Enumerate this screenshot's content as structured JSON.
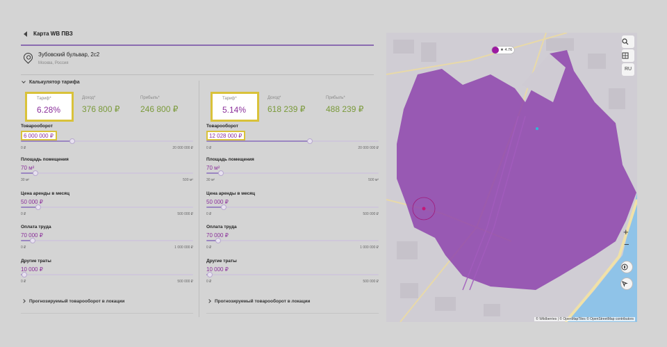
{
  "header": {
    "title": "Карта WB ПВЗ"
  },
  "address": {
    "street": "Зубовский бульвар, 2с2",
    "city": "Москва, Россия"
  },
  "calculator": {
    "toggle_label": "Калькулятор тарифа"
  },
  "columns": [
    {
      "metrics": {
        "tariff_label": "Тариф*",
        "tariff_value": "6.28%",
        "income_label": "Доход*",
        "income_value": "376 800 ₽",
        "profit_label": "Прибыль*",
        "profit_value": "246 800 ₽"
      },
      "params": [
        {
          "label": "Товарооборот",
          "value": "6 000 000 ₽",
          "min": "0 ₽",
          "max": "20 000 000 ₽",
          "fraction": 0.3
        },
        {
          "label": "Площадь помещения",
          "value": "70 м²",
          "min": "30 м²",
          "max": "500 м²",
          "fraction": 0.085
        },
        {
          "label": "Цена аренды в месяц",
          "value": "50 000 ₽",
          "min": "0 ₽",
          "max": "500 000 ₽",
          "fraction": 0.1
        },
        {
          "label": "Оплата труда",
          "value": "70 000 ₽",
          "min": "0 ₽",
          "max": "1 000 000 ₽",
          "fraction": 0.07
        },
        {
          "label": "Другие траты",
          "value": "10 000 ₽",
          "min": "0 ₽",
          "max": "500 000 ₽",
          "fraction": 0.02
        }
      ],
      "forecast_label": "Прогнозируемый товарооборот в локации"
    },
    {
      "metrics": {
        "tariff_label": "Тариф*",
        "tariff_value": "5.14%",
        "income_label": "Доход*",
        "income_value": "618 239 ₽",
        "profit_label": "Прибыль*",
        "profit_value": "488 239 ₽"
      },
      "params": [
        {
          "label": "Товарооборот",
          "value": "12 028 000 ₽",
          "min": "0 ₽",
          "max": "20 000 000 ₽",
          "fraction": 0.6
        },
        {
          "label": "Площадь помещения",
          "value": "70 м²",
          "min": "30 м²",
          "max": "500 м²",
          "fraction": 0.085
        },
        {
          "label": "Цена аренды в месяц",
          "value": "50 000 ₽",
          "min": "0 ₽",
          "max": "500 000 ₽",
          "fraction": 0.1
        },
        {
          "label": "Оплата труда",
          "value": "70 000 ₽",
          "min": "0 ₽",
          "max": "1 000 000 ₽",
          "fraction": 0.07
        },
        {
          "label": "Другие траты",
          "value": "10 000 ₽",
          "min": "0 ₽",
          "max": "500 000 ₽",
          "fraction": 0.02
        }
      ],
      "forecast_label": "Прогнозируемый товарооборот в локации"
    }
  ],
  "map": {
    "rating": "4.76",
    "lang_label": "RU",
    "attribution": "© Wildberries | © OpenMapTiles © OpenStreetMap contributors",
    "zone_color": "#8e44ad",
    "icons": [
      "search-icon",
      "layers-icon",
      "compass-icon",
      "locate-icon"
    ]
  },
  "colors": {
    "accent": "#8a2f9a",
    "income": "#7a9a3a",
    "highlight": "#d9c23a"
  }
}
